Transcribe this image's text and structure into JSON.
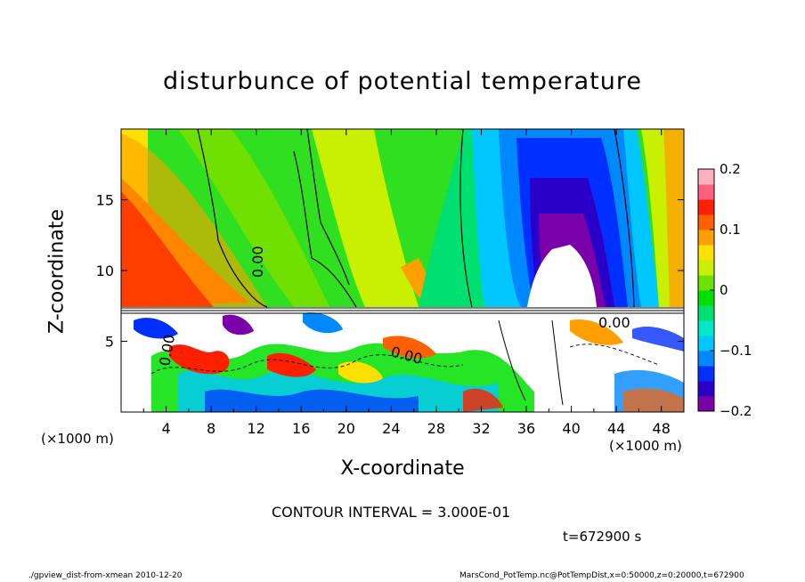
{
  "chart_data": {
    "type": "heatmap",
    "title": "disturbunce of potential temperature",
    "xlabel": "X-coordinate",
    "ylabel": "Z-coordinate",
    "x_unit": "(×1000 m)",
    "x_unit_right": "(×1000 m)",
    "xlim": [
      0,
      50
    ],
    "ylim": [
      0,
      20
    ],
    "x_ticks": [
      4,
      8,
      12,
      16,
      20,
      24,
      28,
      32,
      36,
      40,
      44,
      48
    ],
    "x_tick_labels": [
      "4",
      "8",
      "12",
      "16",
      "20",
      "24",
      "28",
      "32",
      "36",
      "40",
      "44",
      "48"
    ],
    "y_ticks": [
      5,
      10,
      15
    ],
    "y_tick_labels": [
      "5",
      "10",
      "15"
    ],
    "colorbar": {
      "range": [
        -0.2,
        0.2
      ],
      "ticks": [
        0.2,
        0.1,
        0,
        -0.1,
        -0.2
      ],
      "tick_labels": [
        "0.2",
        "0.1",
        "0",
        "−0.1",
        "−0.2"
      ],
      "colors": [
        "#7a00aa",
        "#2a00c8",
        "#0030ff",
        "#0088ff",
        "#00c8ff",
        "#00e8c8",
        "#00e070",
        "#00e000",
        "#70e000",
        "#c8f000",
        "#ffe000",
        "#ffa000",
        "#ff6000",
        "#ff2000",
        "#ff6080",
        "#ffb0c0"
      ]
    },
    "contour_labels": [
      "0.00",
      "0.00",
      "0.00",
      "0.00"
    ],
    "contour_interval": "CONTOUR INTERVAL = 3.000E-01",
    "time": "t=672900 s"
  },
  "footer": {
    "left": "./gpview_dist-from-xmean  2010-12-20",
    "right": "MarsCond_PotTemp.nc@PotTempDist,x=0:50000,z=0:20000,t=672900"
  }
}
